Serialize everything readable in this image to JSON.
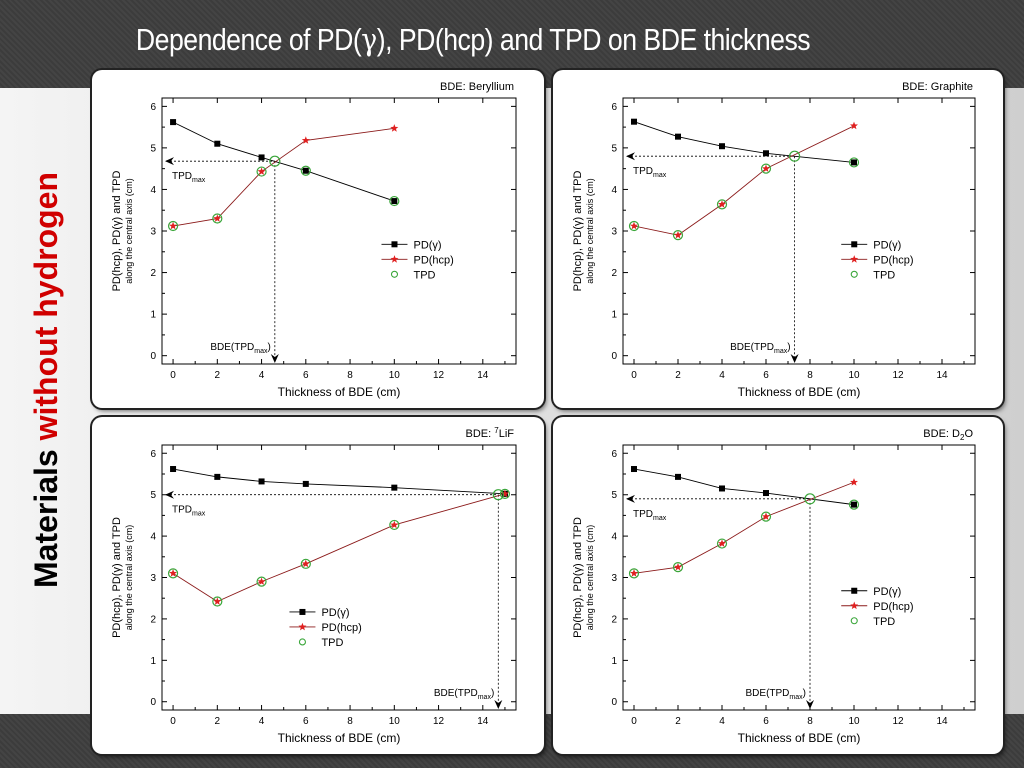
{
  "slide": {
    "title_pre": "Dependence of PD(",
    "title_gamma": "γ",
    "title_post": "), PD(hcp) and TPD on BDE thickness",
    "side_label_part1": "Materials ",
    "side_label_part2": "without hydrogen"
  },
  "colors": {
    "pd_gamma": "#000000",
    "pd_hcp_line": "#8b1a1a",
    "pd_hcp_marker": "#e02020",
    "tpd": "#3aa63a",
    "side_label_accent": "#d00000"
  },
  "chart_data": [
    {
      "type": "line",
      "title_prefix": "BDE: ",
      "title_main": "Beryllium",
      "title_sup": "",
      "title_sub": "",
      "title_tail": "",
      "xlabel": "Thickness of BDE (cm)",
      "ylabel_line1": "PD(hcp), PD(γ) and TPD",
      "ylabel_line2": "along the central axis (cm)",
      "xlim": [
        -0.5,
        15.5
      ],
      "ylim": [
        -0.2,
        6.2
      ],
      "xticks": [
        0,
        2,
        4,
        6,
        8,
        10,
        12,
        14
      ],
      "yticks": [
        0,
        1,
        2,
        3,
        4,
        5,
        6
      ],
      "legend_position": "right",
      "series": [
        {
          "name": "PD(γ)",
          "x": [
            0,
            2,
            4,
            6,
            10
          ],
          "y": [
            5.62,
            5.1,
            4.77,
            4.45,
            3.72
          ]
        },
        {
          "name": "PD(hcp)",
          "x": [
            0,
            2,
            4,
            6,
            10
          ],
          "y": [
            3.12,
            3.3,
            4.43,
            5.18,
            5.47
          ]
        },
        {
          "name": "TPD",
          "x": [
            0,
            2,
            4,
            4.6,
            6,
            10
          ],
          "y": [
            3.12,
            3.3,
            4.43,
            4.68,
            4.45,
            3.72
          ]
        }
      ],
      "tpd_max": {
        "x": 4.6,
        "y": 4.68,
        "label_main": "TPD",
        "label_sub": "max"
      },
      "bde_tpd_label": {
        "main": "BDE(TPD",
        "sub": "max",
        "tail": ")"
      }
    },
    {
      "type": "line",
      "title_prefix": "BDE: ",
      "title_main": "Graphite",
      "title_sup": "",
      "title_sub": "",
      "title_tail": "",
      "xlabel": "Thickness of BDE (cm)",
      "ylabel_line1": "PD(hcp), PD(γ) and TPD",
      "ylabel_line2": "along the central axis (cm)",
      "xlim": [
        -0.5,
        15.5
      ],
      "ylim": [
        -0.2,
        6.2
      ],
      "xticks": [
        0,
        2,
        4,
        6,
        8,
        10,
        12,
        14
      ],
      "yticks": [
        0,
        1,
        2,
        3,
        4,
        5,
        6
      ],
      "legend_position": "right",
      "series": [
        {
          "name": "PD(γ)",
          "x": [
            0,
            2,
            4,
            6,
            10
          ],
          "y": [
            5.63,
            5.27,
            5.04,
            4.87,
            4.65
          ]
        },
        {
          "name": "PD(hcp)",
          "x": [
            0,
            2,
            4,
            6,
            10
          ],
          "y": [
            3.12,
            2.9,
            3.64,
            4.5,
            5.53
          ]
        },
        {
          "name": "TPD",
          "x": [
            0,
            2,
            4,
            6,
            7.3,
            10
          ],
          "y": [
            3.12,
            2.9,
            3.64,
            4.5,
            4.8,
            4.65
          ]
        }
      ],
      "tpd_max": {
        "x": 7.3,
        "y": 4.8,
        "label_main": "TPD",
        "label_sub": "max"
      },
      "bde_tpd_label": {
        "main": "BDE(TPD",
        "sub": "max",
        "tail": ")"
      }
    },
    {
      "type": "line",
      "title_prefix": "BDE: ",
      "title_main": "LiF",
      "title_sup": "7",
      "title_sub": "",
      "title_tail": "",
      "xlabel": "Thickness of BDE (cm)",
      "ylabel_line1": "PD(hcp), PD(γ) and TPD",
      "ylabel_line2": "along the central axis (cm)",
      "xlim": [
        -0.5,
        15.5
      ],
      "ylim": [
        -0.2,
        6.2
      ],
      "xticks": [
        0,
        2,
        4,
        6,
        8,
        10,
        12,
        14
      ],
      "yticks": [
        0,
        1,
        2,
        3,
        4,
        5,
        6
      ],
      "legend_position": "center",
      "series": [
        {
          "name": "PD(γ)",
          "x": [
            0,
            2,
            4,
            6,
            10,
            15
          ],
          "y": [
            5.62,
            5.43,
            5.32,
            5.26,
            5.17,
            5.02
          ]
        },
        {
          "name": "PD(hcp)",
          "x": [
            0,
            2,
            4,
            6,
            10,
            15
          ],
          "y": [
            3.1,
            2.42,
            2.9,
            3.33,
            4.27,
            5.02
          ]
        },
        {
          "name": "TPD",
          "x": [
            0,
            2,
            4,
            6,
            10,
            14.7,
            15
          ],
          "y": [
            3.1,
            2.42,
            2.9,
            3.33,
            4.27,
            5.0,
            5.02
          ]
        }
      ],
      "tpd_max": {
        "x": 14.7,
        "y": 5.0,
        "label_main": "TPD",
        "label_sub": "max"
      },
      "bde_tpd_label": {
        "main": "BDE(TPD",
        "sub": "max",
        "tail": ")"
      }
    },
    {
      "type": "line",
      "title_prefix": "BDE: ",
      "title_main": "D",
      "title_sup": "",
      "title_sub": "2",
      "title_tail": "O",
      "xlabel": "Thickness of BDE (cm)",
      "ylabel_line1": "PD(hcp), PD(γ) and TPD",
      "ylabel_line2": "along the central axis (cm)",
      "xlim": [
        -0.5,
        15.5
      ],
      "ylim": [
        -0.2,
        6.2
      ],
      "xticks": [
        0,
        2,
        4,
        6,
        8,
        10,
        12,
        14
      ],
      "yticks": [
        0,
        1,
        2,
        3,
        4,
        5,
        6
      ],
      "legend_position": "right",
      "series": [
        {
          "name": "PD(γ)",
          "x": [
            0,
            2,
            4,
            6,
            10
          ],
          "y": [
            5.62,
            5.43,
            5.15,
            5.04,
            4.76
          ]
        },
        {
          "name": "PD(hcp)",
          "x": [
            0,
            2,
            4,
            6,
            10
          ],
          "y": [
            3.1,
            3.25,
            3.82,
            4.47,
            5.3
          ]
        },
        {
          "name": "TPD",
          "x": [
            0,
            2,
            4,
            6,
            8,
            10
          ],
          "y": [
            3.1,
            3.25,
            3.82,
            4.47,
            4.9,
            4.76
          ]
        }
      ],
      "tpd_max": {
        "x": 8.0,
        "y": 4.9,
        "label_main": "TPD",
        "label_sub": "max"
      },
      "bde_tpd_label": {
        "main": "BDE(TPD",
        "sub": "max",
        "tail": ")"
      }
    }
  ]
}
